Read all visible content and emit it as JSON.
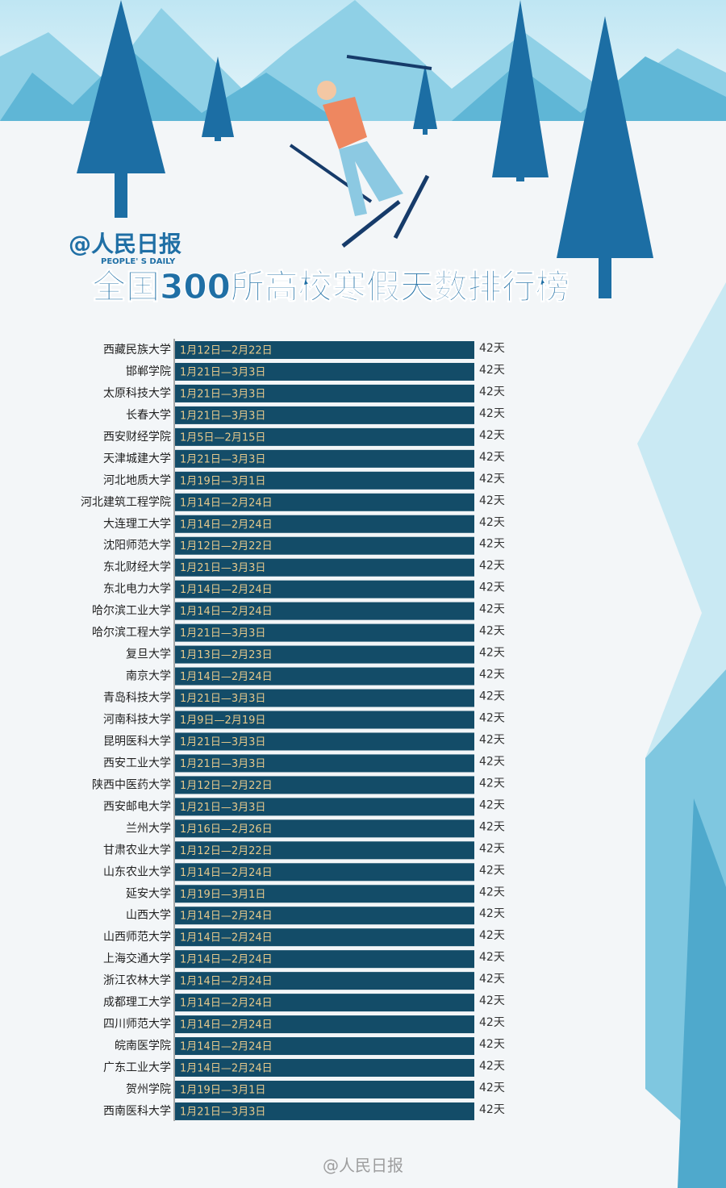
{
  "header": {
    "logo": "@人民日报",
    "logo_sub": "PEOPLE' S DAILY"
  },
  "chart_data": {
    "type": "bar",
    "orientation": "horizontal",
    "title": "全国300所高校寒假天数排行榜",
    "categories": [
      "西藏民族大学",
      "邯郸学院",
      "太原科技大学",
      "长春大学",
      "西安财经学院",
      "天津城建大学",
      "河北地质大学",
      "河北建筑工程学院",
      "大连理工大学",
      "沈阳师范大学",
      "东北财经大学",
      "东北电力大学",
      "哈尔滨工业大学",
      "哈尔滨工程大学",
      "复旦大学",
      "南京大学",
      "青岛科技大学",
      "河南科技大学",
      "昆明医科大学",
      "西安工业大学",
      "陕西中医药大学",
      "西安邮电大学",
      "兰州大学",
      "甘肃农业大学",
      "山东农业大学",
      "延安大学",
      "山西大学",
      "山西师范大学",
      "上海交通大学",
      "浙江农林大学",
      "成都理工大学",
      "四川师范大学",
      "皖南医学院",
      "广东工业大学",
      "贺州学院",
      "西南医科大学"
    ],
    "values": [
      42,
      42,
      42,
      42,
      42,
      42,
      42,
      42,
      42,
      42,
      42,
      42,
      42,
      42,
      42,
      42,
      42,
      42,
      42,
      42,
      42,
      42,
      42,
      42,
      42,
      42,
      42,
      42,
      42,
      42,
      42,
      42,
      42,
      42,
      42,
      42
    ],
    "value_labels": [
      "42天",
      "42天",
      "42天",
      "42天",
      "42天",
      "42天",
      "42天",
      "42天",
      "42天",
      "42天",
      "42天",
      "42天",
      "42天",
      "42天",
      "42天",
      "42天",
      "42天",
      "42天",
      "42天",
      "42天",
      "42天",
      "42天",
      "42天",
      "42天",
      "42天",
      "42天",
      "42天",
      "42天",
      "42天",
      "42天",
      "42天",
      "42天",
      "42天",
      "42天",
      "42天",
      "42天"
    ],
    "bar_labels": [
      "1月12日—2月22日",
      "1月21日—3月3日",
      "1月21日—3月3日",
      "1月21日—3月3日",
      "1月5日—2月15日",
      "1月21日—3月3日",
      "1月19日—3月1日",
      "1月14日—2月24日",
      "1月14日—2月24日",
      "1月12日—2月22日",
      "1月21日—3月3日",
      "1月14日—2月24日",
      "1月14日—2月24日",
      "1月21日—3月3日",
      "1月13日—2月23日",
      "1月14日—2月24日",
      "1月21日—3月3日",
      "1月9日—2月19日",
      "1月21日—3月3日",
      "1月21日—3月3日",
      "1月12日—2月22日",
      "1月21日—3月3日",
      "1月16日—2月26日",
      "1月12日—2月22日",
      "1月14日—2月24日",
      "1月19日—3月1日",
      "1月14日—2月24日",
      "1月14日—2月24日",
      "1月14日—2月24日",
      "1月14日—2月24日",
      "1月14日—2月24日",
      "1月14日—2月24日",
      "1月14日—2月24日",
      "1月14日—2月24日",
      "1月19日—3月1日",
      "1月21日—3月3日"
    ],
    "color": "#134c68",
    "xlim": [
      0,
      42
    ]
  },
  "footer": {
    "watermark": "@人民日报"
  }
}
